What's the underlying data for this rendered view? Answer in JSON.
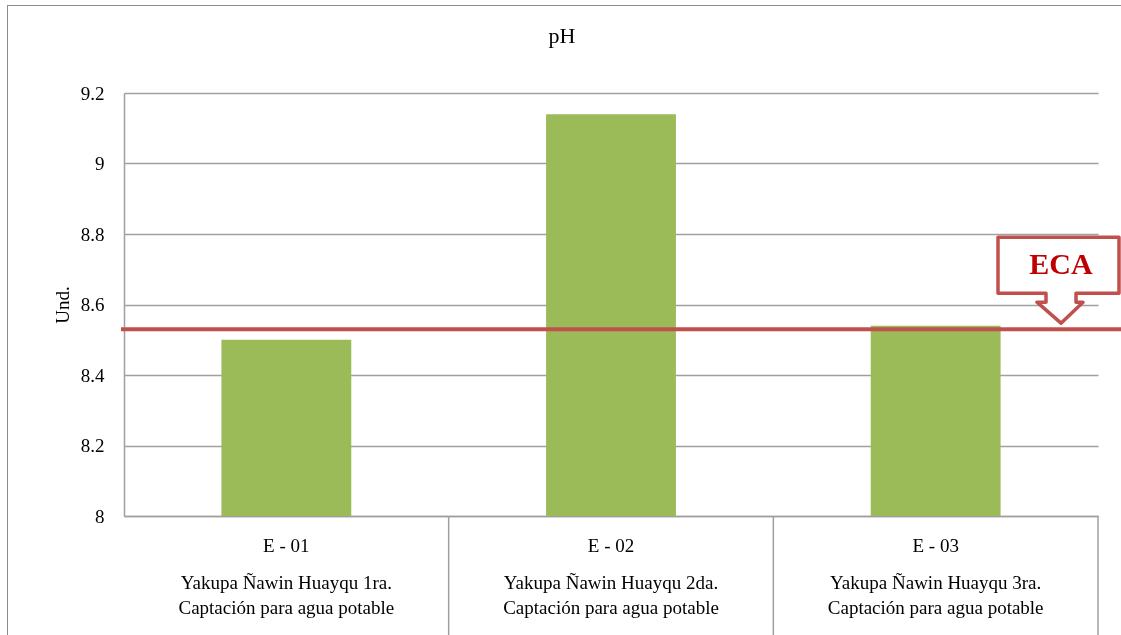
{
  "chart_data": {
    "type": "bar",
    "title": "pH",
    "ylabel": "Und.",
    "categories": [
      "E - 01\nYakupa Ñawin Huayqu 1ra.\nCaptación para agua potable",
      "E - 02\nYakupa Ñawin Huayqu 2da.\nCaptación para agua potable",
      "E - 03\nYakupa Ñawin Huayqu 3ra.\nCaptación para agua potable"
    ],
    "values": [
      8.5,
      9.14,
      8.54
    ],
    "color": "#9bbb59",
    "ylim": [
      8,
      9.2
    ],
    "yticks": [
      8,
      8.2,
      8.4,
      8.6,
      8.8,
      9,
      9.2
    ],
    "grid": "y",
    "ref_lines": [
      {
        "axis": "y",
        "value": 8.53,
        "label": "ECA",
        "color": "#c0504d"
      }
    ]
  }
}
